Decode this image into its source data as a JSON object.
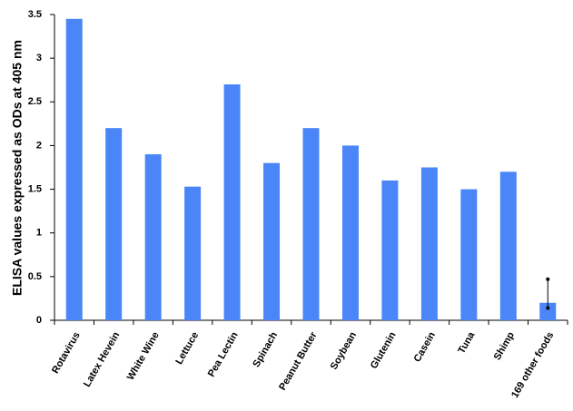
{
  "chart_data": {
    "type": "bar",
    "y_label": "ELISA values expressed as ODs at 405 nm",
    "categories": [
      "Rotavirus",
      "Latex Hevein",
      "White Wine",
      "Lettuce",
      "Pea Lectin",
      "Spinach",
      "Peanut Butter",
      "Soybean",
      "Glutenin",
      "Casein",
      "Tuna",
      "Shimp",
      "169 other foods"
    ],
    "values": [
      3.45,
      2.2,
      1.9,
      1.53,
      2.7,
      1.8,
      2.2,
      2.0,
      1.6,
      1.75,
      1.5,
      1.7,
      0.2
    ],
    "error_plus": [
      null,
      null,
      null,
      null,
      null,
      null,
      null,
      null,
      null,
      null,
      null,
      null,
      0.27
    ],
    "error_minus": [
      null,
      null,
      null,
      null,
      null,
      null,
      null,
      null,
      null,
      null,
      null,
      null,
      0.06
    ],
    "color": "#4a86f7",
    "ylim": [
      0,
      3.5
    ],
    "yticks": [
      0,
      0.5,
      1,
      1.5,
      2,
      2.5,
      3,
      3.5
    ],
    "grid": false
  }
}
